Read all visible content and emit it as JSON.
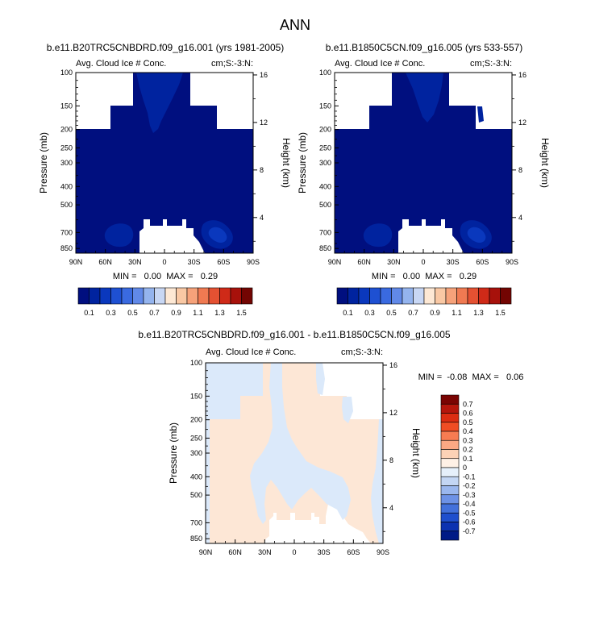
{
  "title": "ANN",
  "chart_data": [
    {
      "type": "heatmap",
      "title": "b.e11.B20TRC5CNBDRD.f09_g16.001 (yrs 1981-2005)",
      "left_label": "Avg. Cloud Ice # Conc.",
      "right_label": "cm;S:-3:N:",
      "ylabel": "Pressure (mb)",
      "y2label": "Height (km)",
      "xticks": [
        "90N",
        "60N",
        "30N",
        "0",
        "30S",
        "60S",
        "90S"
      ],
      "x_range": [
        90,
        -90
      ],
      "yticks": [
        "100",
        "150",
        "200",
        "250",
        "300",
        "400",
        "500",
        "700",
        "850"
      ],
      "y2ticks": [
        "16",
        "12",
        "8",
        "4"
      ],
      "log_y": true,
      "stats": "MIN =   0.00  MAX =   0.29",
      "colorbar": {
        "labels": [
          "0.1",
          "0.3",
          "0.5",
          "0.7",
          "0.9",
          "1.1",
          "1.3",
          "1.5"
        ],
        "colors": [
          "#000f7f",
          "#00239f",
          "#0a38bd",
          "#1e50d2",
          "#3a6ae0",
          "#6189e8",
          "#94b4ee",
          "#c8d7f4",
          "#fde8d4",
          "#f9c8a4",
          "#f6a27a",
          "#f07a52",
          "#e45132",
          "#cf2a18",
          "#a7110b",
          "#730502"
        ]
      }
    },
    {
      "type": "heatmap",
      "title": "b.e11.B1850C5CN.f09_g16.005 (yrs 533-557)",
      "left_label": "Avg. Cloud Ice # Conc.",
      "right_label": "cm;S:-3:N:",
      "ylabel": "Pressure (mb)",
      "y2label": "Height (km)",
      "xticks": [
        "90N",
        "60N",
        "30N",
        "0",
        "30S",
        "60S",
        "90S"
      ],
      "x_range": [
        90,
        -90
      ],
      "yticks": [
        "100",
        "150",
        "200",
        "250",
        "300",
        "400",
        "500",
        "700",
        "850"
      ],
      "y2ticks": [
        "16",
        "12",
        "8",
        "4"
      ],
      "log_y": true,
      "stats": "MIN =   0.00  MAX =   0.29",
      "colorbar": {
        "labels": [
          "0.1",
          "0.3",
          "0.5",
          "0.7",
          "0.9",
          "1.1",
          "1.3",
          "1.5"
        ],
        "colors": [
          "#000f7f",
          "#00239f",
          "#0a38bd",
          "#1e50d2",
          "#3a6ae0",
          "#6189e8",
          "#94b4ee",
          "#c8d7f4",
          "#fde8d4",
          "#f9c8a4",
          "#f6a27a",
          "#f07a52",
          "#e45132",
          "#cf2a18",
          "#a7110b",
          "#730502"
        ]
      }
    },
    {
      "type": "heatmap",
      "title": "b.e11.B20TRC5CNBDRD.f09_g16.001 - b.e11.B1850C5CN.f09_g16.005",
      "left_label": "Avg. Cloud Ice # Conc.",
      "right_label": "cm;S:-3:N:",
      "ylabel": "Pressure (mb)",
      "y2label": "Height (km)",
      "xticks": [
        "90N",
        "60N",
        "30N",
        "0",
        "30S",
        "60S",
        "90S"
      ],
      "x_range": [
        90,
        -90
      ],
      "yticks": [
        "100",
        "150",
        "200",
        "250",
        "300",
        "400",
        "500",
        "700",
        "850"
      ],
      "y2ticks": [
        "16",
        "12",
        "8",
        "4"
      ],
      "log_y": true,
      "stats": "MIN =  -0.08  MAX =   0.06",
      "colorbar": {
        "labels": [
          "0.7",
          "0.6",
          "0.5",
          "0.4",
          "0.3",
          "0.2",
          "0.1",
          "0",
          "-0.1",
          "-0.2",
          "-0.3",
          "-0.4",
          "-0.5",
          "-0.6",
          "-0.7"
        ],
        "colors": [
          "#7a0403",
          "#b5160c",
          "#dc2d12",
          "#f04d24",
          "#f77c52",
          "#fba884",
          "#fdd2b6",
          "#fff1e6",
          "#e6f0fb",
          "#c3d6f4",
          "#9ab7ee",
          "#6d92e6",
          "#4371db",
          "#1f4fcd",
          "#0c32b0",
          "#001a86"
        ]
      }
    }
  ]
}
